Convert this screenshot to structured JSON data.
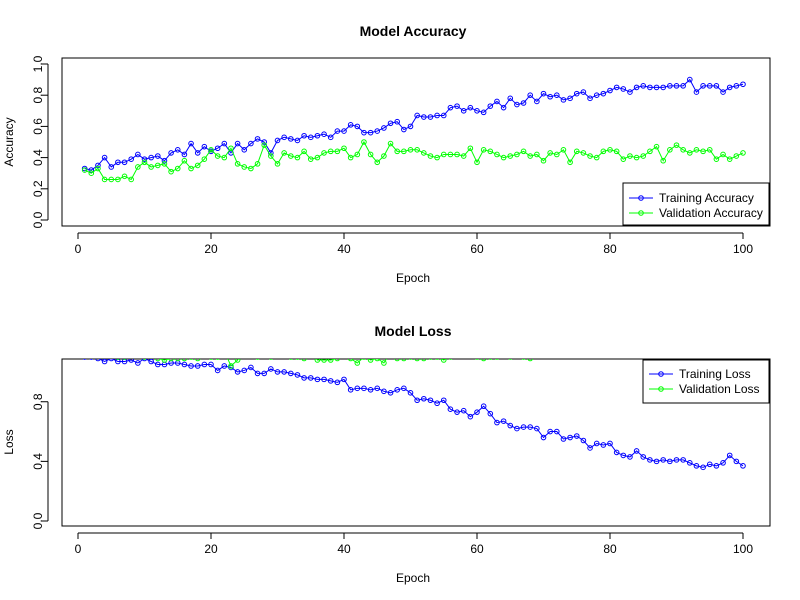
{
  "chart_data": [
    {
      "type": "line",
      "title": "Model Accuracy",
      "xlabel": "Epoch",
      "ylabel": "Accuracy",
      "xlim": [
        0,
        100
      ],
      "ylim": [
        0,
        1
      ],
      "xticks": [
        0,
        20,
        40,
        60,
        80,
        100
      ],
      "yticks": [
        0.0,
        0.2,
        0.4,
        0.6,
        0.8,
        1.0
      ],
      "yticklabels": [
        "0.0",
        "0.2",
        "0.4",
        "0.6",
        "0.8",
        "1.0"
      ],
      "legend_position": "bottom-right",
      "series": [
        {
          "name": "Training Accuracy",
          "color": "#0000FF",
          "x": [
            1,
            2,
            3,
            4,
            5,
            6,
            7,
            8,
            9,
            10,
            11,
            12,
            13,
            14,
            15,
            16,
            17,
            18,
            19,
            20,
            21,
            22,
            23,
            24,
            25,
            26,
            27,
            28,
            29,
            30,
            31,
            32,
            33,
            34,
            35,
            36,
            37,
            38,
            39,
            40,
            41,
            42,
            43,
            44,
            45,
            46,
            47,
            48,
            49,
            50,
            51,
            52,
            53,
            54,
            55,
            56,
            57,
            58,
            59,
            60,
            61,
            62,
            63,
            64,
            65,
            66,
            67,
            68,
            69,
            70,
            71,
            72,
            73,
            74,
            75,
            76,
            77,
            78,
            79,
            80,
            81,
            82,
            83,
            84,
            85,
            86,
            87,
            88,
            89,
            90,
            91,
            92,
            93,
            94,
            95,
            96,
            97,
            98,
            99,
            100
          ],
          "y": [
            0.33,
            0.32,
            0.35,
            0.4,
            0.34,
            0.37,
            0.37,
            0.39,
            0.42,
            0.39,
            0.4,
            0.41,
            0.38,
            0.43,
            0.45,
            0.42,
            0.49,
            0.43,
            0.47,
            0.44,
            0.46,
            0.49,
            0.43,
            0.49,
            0.45,
            0.49,
            0.52,
            0.5,
            0.43,
            0.51,
            0.53,
            0.52,
            0.51,
            0.54,
            0.53,
            0.54,
            0.55,
            0.53,
            0.57,
            0.57,
            0.61,
            0.6,
            0.56,
            0.56,
            0.57,
            0.59,
            0.62,
            0.63,
            0.58,
            0.6,
            0.67,
            0.66,
            0.66,
            0.67,
            0.67,
            0.72,
            0.73,
            0.7,
            0.72,
            0.7,
            0.69,
            0.73,
            0.76,
            0.72,
            0.78,
            0.74,
            0.75,
            0.8,
            0.76,
            0.81,
            0.79,
            0.8,
            0.77,
            0.78,
            0.81,
            0.82,
            0.78,
            0.8,
            0.81,
            0.83,
            0.85,
            0.84,
            0.82,
            0.85,
            0.86,
            0.85,
            0.85,
            0.85,
            0.86,
            0.86,
            0.86,
            0.9,
            0.82,
            0.86,
            0.86,
            0.86,
            0.82,
            0.85,
            0.86,
            0.87
          ]
        },
        {
          "name": "Validation Accuracy",
          "color": "#00FF00",
          "x": [
            1,
            2,
            3,
            4,
            5,
            6,
            7,
            8,
            9,
            10,
            11,
            12,
            13,
            14,
            15,
            16,
            17,
            18,
            19,
            20,
            21,
            22,
            23,
            24,
            25,
            26,
            27,
            28,
            29,
            30,
            31,
            32,
            33,
            34,
            35,
            36,
            37,
            38,
            39,
            40,
            41,
            42,
            43,
            44,
            45,
            46,
            47,
            48,
            49,
            50,
            51,
            52,
            53,
            54,
            55,
            56,
            57,
            58,
            59,
            60,
            61,
            62,
            63,
            64,
            65,
            66,
            67,
            68,
            69,
            70,
            71,
            72,
            73,
            74,
            75,
            76,
            77,
            78,
            79,
            80,
            81,
            82,
            83,
            84,
            85,
            86,
            87,
            88,
            89,
            90,
            91,
            92,
            93,
            94,
            95,
            96,
            97,
            98,
            99,
            100
          ],
          "y": [
            0.32,
            0.3,
            0.33,
            0.26,
            0.26,
            0.26,
            0.28,
            0.26,
            0.34,
            0.37,
            0.34,
            0.35,
            0.36,
            0.31,
            0.33,
            0.38,
            0.33,
            0.35,
            0.39,
            0.45,
            0.41,
            0.4,
            0.46,
            0.36,
            0.34,
            0.33,
            0.36,
            0.48,
            0.41,
            0.36,
            0.43,
            0.41,
            0.4,
            0.44,
            0.39,
            0.4,
            0.43,
            0.44,
            0.44,
            0.46,
            0.4,
            0.42,
            0.5,
            0.42,
            0.37,
            0.41,
            0.49,
            0.44,
            0.44,
            0.45,
            0.45,
            0.43,
            0.41,
            0.4,
            0.42,
            0.42,
            0.42,
            0.41,
            0.46,
            0.37,
            0.45,
            0.44,
            0.42,
            0.4,
            0.41,
            0.42,
            0.44,
            0.41,
            0.42,
            0.38,
            0.43,
            0.42,
            0.45,
            0.37,
            0.44,
            0.43,
            0.41,
            0.4,
            0.44,
            0.45,
            0.44,
            0.39,
            0.41,
            0.4,
            0.41,
            0.44,
            0.47,
            0.38,
            0.45,
            0.48,
            0.45,
            0.43,
            0.45,
            0.44,
            0.45,
            0.39,
            0.42,
            0.39,
            0.41,
            0.43
          ]
        }
      ]
    },
    {
      "type": "line",
      "title": "Model Loss",
      "xlabel": "Epoch",
      "ylabel": "Loss",
      "xlim": [
        0,
        100
      ],
      "ylim": [
        0,
        1.08
      ],
      "xticks": [
        0,
        20,
        40,
        60,
        80,
        100
      ],
      "yticks": [
        0.0,
        0.4,
        0.8
      ],
      "yticklabels": [
        "0.0",
        "0.4",
        "0.8"
      ],
      "legend_position": "top-right",
      "series": [
        {
          "name": "Training Loss",
          "color": "#0000FF",
          "x": [
            1,
            2,
            3,
            4,
            5,
            6,
            7,
            8,
            9,
            10,
            11,
            12,
            13,
            14,
            15,
            16,
            17,
            18,
            19,
            20,
            21,
            22,
            23,
            24,
            25,
            26,
            27,
            28,
            29,
            30,
            31,
            32,
            33,
            34,
            35,
            36,
            37,
            38,
            39,
            40,
            41,
            42,
            43,
            44,
            45,
            46,
            47,
            48,
            49,
            50,
            51,
            52,
            53,
            54,
            55,
            56,
            57,
            58,
            59,
            60,
            61,
            62,
            63,
            64,
            65,
            66,
            67,
            68,
            69,
            70,
            71,
            72,
            73,
            74,
            75,
            76,
            77,
            78,
            79,
            80,
            81,
            82,
            83,
            84,
            85,
            86,
            87,
            88,
            89,
            90,
            91,
            92,
            93,
            94,
            95,
            96,
            97,
            98,
            99,
            100
          ],
          "y": [
            1.1,
            1.1,
            1.09,
            1.07,
            1.09,
            1.07,
            1.07,
            1.08,
            1.06,
            1.09,
            1.07,
            1.05,
            1.05,
            1.06,
            1.06,
            1.05,
            1.04,
            1.04,
            1.05,
            1.05,
            1.01,
            1.04,
            1.03,
            1.0,
            1.01,
            1.03,
            0.99,
            0.99,
            1.02,
            1.0,
            1.0,
            0.99,
            0.98,
            0.96,
            0.96,
            0.95,
            0.95,
            0.94,
            0.93,
            0.95,
            0.88,
            0.89,
            0.89,
            0.88,
            0.89,
            0.87,
            0.86,
            0.88,
            0.89,
            0.86,
            0.81,
            0.82,
            0.81,
            0.79,
            0.81,
            0.75,
            0.73,
            0.74,
            0.7,
            0.73,
            0.77,
            0.72,
            0.66,
            0.67,
            0.64,
            0.62,
            0.63,
            0.63,
            0.62,
            0.56,
            0.6,
            0.6,
            0.55,
            0.56,
            0.57,
            0.54,
            0.49,
            0.52,
            0.51,
            0.52,
            0.46,
            0.44,
            0.43,
            0.47,
            0.43,
            0.41,
            0.4,
            0.41,
            0.4,
            0.41,
            0.41,
            0.39,
            0.37,
            0.36,
            0.38,
            0.37,
            0.39,
            0.44,
            0.4,
            0.37
          ]
        },
        {
          "name": "Validation Loss",
          "color": "#00FF00",
          "x": [
            1,
            2,
            3,
            4,
            5,
            6,
            7,
            8,
            9,
            10,
            11,
            12,
            13,
            14,
            15,
            16,
            17,
            18,
            19,
            20,
            21,
            22,
            23,
            24,
            25,
            26,
            27,
            28,
            29,
            30,
            31,
            32,
            33,
            34,
            35,
            36,
            37,
            38,
            39,
            40,
            41,
            42,
            43,
            44,
            45,
            46,
            47,
            48,
            49,
            50,
            51,
            52,
            53,
            54,
            55,
            56,
            57,
            58,
            59,
            60,
            61,
            62,
            63,
            64,
            65,
            66,
            67,
            68,
            69,
            70,
            71,
            72
          ],
          "y": [
            1.12,
            1.12,
            1.11,
            1.12,
            1.11,
            1.1,
            1.1,
            1.11,
            1.11,
            1.1,
            1.11,
            1.09,
            1.08,
            1.09,
            1.09,
            1.09,
            1.1,
            1.09,
            1.12,
            1.1,
            1.1,
            1.14,
            1.04,
            1.08,
            1.14,
            1.11,
            1.1,
            1.11,
            1.1,
            1.12,
            1.12,
            1.1,
            1.1,
            1.09,
            1.13,
            1.08,
            1.08,
            1.08,
            1.09,
            1.12,
            1.09,
            1.06,
            1.1,
            1.08,
            1.09,
            1.06,
            1.13,
            1.09,
            1.09,
            1.1,
            1.09,
            1.09,
            1.1,
            1.1,
            1.08,
            1.1,
            1.13,
            1.11,
            1.11,
            1.1,
            1.09,
            1.1,
            1.1,
            1.11,
            1.1,
            1.13,
            1.1,
            1.09,
            1.12,
            1.13,
            1.11,
            1.11
          ]
        }
      ]
    }
  ]
}
